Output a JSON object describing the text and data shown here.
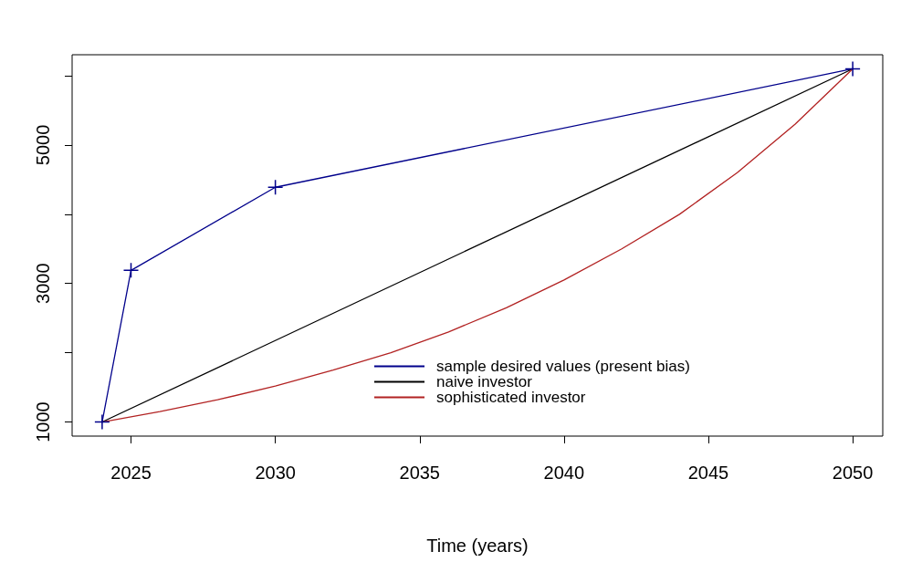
{
  "chart_data": {
    "type": "line",
    "xlabel": "Time (years)",
    "xlim": [
      2022.96,
      2051.04
    ],
    "ylim": [
      796,
      6304
    ],
    "xticks": [
      2025,
      2030,
      2035,
      2040,
      2045,
      2050
    ],
    "yticks": [
      1000,
      {
        "value": 2000,
        "label": null
      },
      3000,
      {
        "value": 4000,
        "label": null
      },
      5000,
      {
        "value": 6000,
        "label": null
      }
    ],
    "grid": false,
    "legend": "bottom",
    "series": [
      {
        "name": "sample desired values (present bias)",
        "color": "#00008b",
        "marker": "cross",
        "x": [
          2024,
          2025,
          2030,
          2050
        ],
        "values": [
          1000,
          3190,
          4390,
          6100
        ]
      },
      {
        "name": "naive investor",
        "color": "#000000",
        "marker": "none",
        "x": [
          2024,
          2050
        ],
        "values": [
          1000,
          6100
        ]
      },
      {
        "name": "sophisticated investor",
        "color": "#b22222",
        "marker": "none",
        "x": [
          2024,
          2026,
          2028,
          2030,
          2032,
          2034,
          2036,
          2038,
          2040,
          2042,
          2044,
          2046,
          2048,
          2050
        ],
        "values": [
          1000,
          1150,
          1320,
          1520,
          1750,
          2000,
          2300,
          2650,
          3050,
          3500,
          4000,
          4600,
          5300,
          6100
        ]
      }
    ]
  }
}
